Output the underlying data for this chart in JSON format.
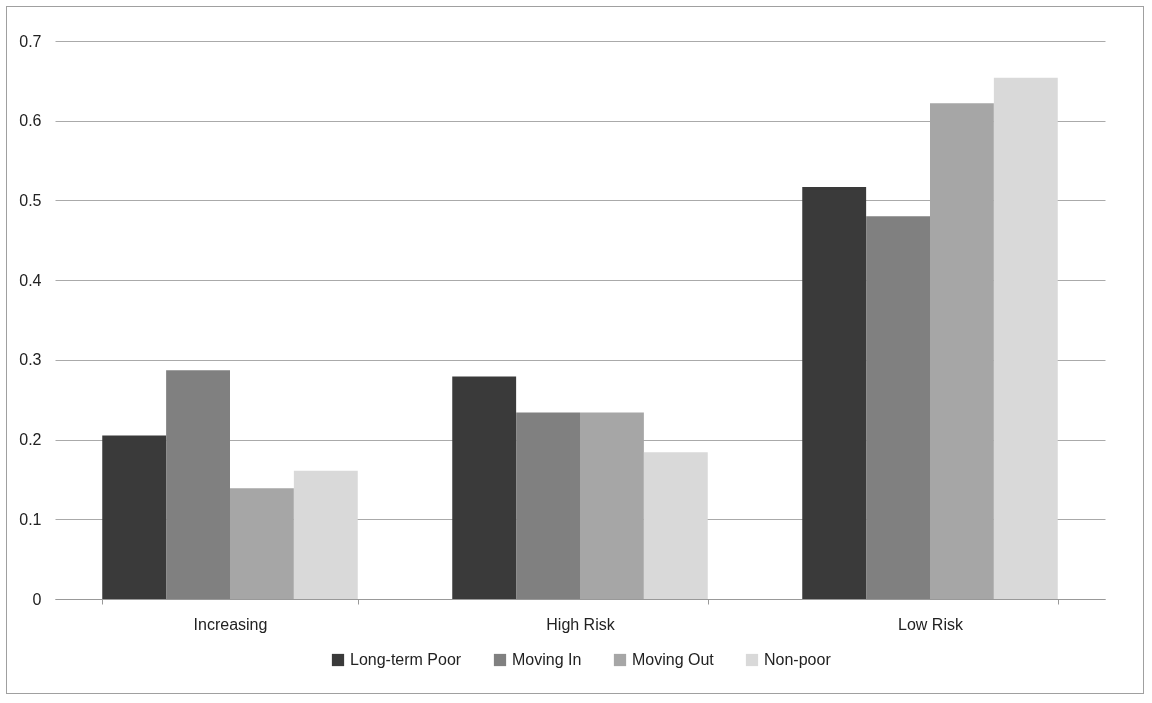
{
  "chart_data": {
    "type": "bar",
    "categories": [
      "Increasing",
      "High Risk",
      "Low Risk"
    ],
    "series": [
      {
        "name": "Long-term Poor",
        "color": "#3a3a3a",
        "values": [
          0.205,
          0.279,
          0.517
        ]
      },
      {
        "name": "Moving In",
        "color": "#808080",
        "values": [
          0.287,
          0.234,
          0.48
        ]
      },
      {
        "name": "Moving Out",
        "color": "#a6a6a6",
        "values": [
          0.139,
          0.234,
          0.622
        ]
      },
      {
        "name": "Non-poor",
        "color": "#d9d9d9",
        "values": [
          0.161,
          0.184,
          0.654
        ]
      }
    ],
    "ylim": [
      0,
      0.7
    ],
    "yticks": [
      0,
      0.1,
      0.2,
      0.3,
      0.4,
      0.5,
      0.6,
      0.7
    ],
    "grid": "y",
    "legend": "bottom"
  }
}
